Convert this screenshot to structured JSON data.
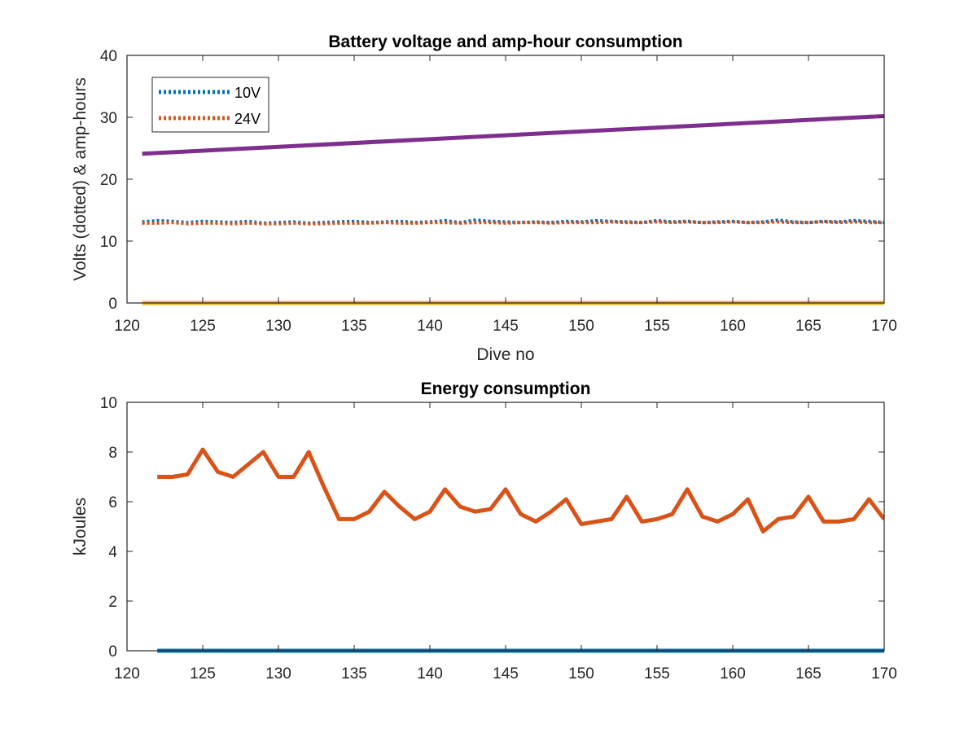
{
  "chart_data": [
    {
      "type": "line",
      "title": "Battery voltage and amp-hour consumption",
      "xlabel": "Dive no",
      "ylabel": "Volts (dotted) & amp-hours",
      "xlim": [
        120,
        170
      ],
      "ylim": [
        0,
        40
      ],
      "xticks": [
        120,
        125,
        130,
        135,
        140,
        145,
        150,
        155,
        160,
        165,
        170
      ],
      "yticks": [
        0,
        10,
        20,
        30,
        40
      ],
      "grid": false,
      "legend": {
        "placement": "top-left"
      },
      "series": [
        {
          "name": "10V",
          "color": "#0072BD",
          "style": "dotted",
          "x": [
            121,
            122,
            123,
            124,
            125,
            126,
            127,
            128,
            129,
            130,
            131,
            132,
            133,
            134,
            135,
            136,
            137,
            138,
            139,
            140,
            141,
            142,
            143,
            144,
            145,
            146,
            147,
            148,
            149,
            150,
            151,
            152,
            153,
            154,
            155,
            156,
            157,
            158,
            159,
            160,
            161,
            162,
            163,
            164,
            165,
            166,
            167,
            168,
            169,
            170
          ],
          "y": [
            13.1,
            13.3,
            13.2,
            13.0,
            13.2,
            13.1,
            13.0,
            13.2,
            12.9,
            13.0,
            13.1,
            12.9,
            13.0,
            13.1,
            13.2,
            13.0,
            13.1,
            13.2,
            13.0,
            13.1,
            13.3,
            13.0,
            13.4,
            13.2,
            13.1,
            13.0,
            13.1,
            13.0,
            13.2,
            13.1,
            13.3,
            13.2,
            13.1,
            13.0,
            13.3,
            13.1,
            13.2,
            13.0,
            13.1,
            13.2,
            13.0,
            13.1,
            13.4,
            13.1,
            13.0,
            13.2,
            13.1,
            13.3,
            13.2,
            13.0
          ]
        },
        {
          "name": "24V",
          "color": "#D95319",
          "style": "dotted",
          "x": [
            121,
            122,
            123,
            124,
            125,
            126,
            127,
            128,
            129,
            130,
            131,
            132,
            133,
            134,
            135,
            136,
            137,
            138,
            139,
            140,
            141,
            142,
            143,
            144,
            145,
            146,
            147,
            148,
            149,
            150,
            151,
            152,
            153,
            154,
            155,
            156,
            157,
            158,
            159,
            160,
            161,
            162,
            163,
            164,
            165,
            166,
            167,
            168,
            169,
            170
          ],
          "y": [
            12.9,
            12.9,
            13.0,
            12.8,
            12.9,
            12.9,
            12.8,
            12.9,
            12.8,
            12.8,
            12.9,
            12.8,
            12.8,
            12.9,
            12.9,
            12.9,
            13.0,
            12.9,
            12.9,
            13.0,
            13.0,
            12.9,
            13.0,
            13.0,
            12.9,
            13.0,
            13.0,
            12.9,
            13.0,
            13.0,
            13.0,
            13.1,
            13.0,
            13.0,
            13.1,
            13.0,
            13.1,
            13.0,
            13.0,
            13.1,
            13.0,
            13.0,
            13.1,
            13.0,
            13.0,
            13.1,
            13.0,
            13.1,
            13.0,
            13.0
          ]
        },
        {
          "color": "#EDB120",
          "style": "solid",
          "x": [
            121,
            170
          ],
          "y": [
            0,
            0
          ]
        },
        {
          "color": "#7E2F8E",
          "style": "solid",
          "x": [
            121,
            170
          ],
          "y": [
            24.1,
            30.2
          ]
        }
      ]
    },
    {
      "type": "line",
      "title": "Energy consumption",
      "xlabel": "",
      "ylabel": "kJoules",
      "xlim": [
        120,
        170
      ],
      "ylim": [
        0,
        10
      ],
      "xticks": [
        120,
        125,
        130,
        135,
        140,
        145,
        150,
        155,
        160,
        165,
        170
      ],
      "yticks": [
        0,
        2,
        4,
        6,
        8,
        10
      ],
      "grid": false,
      "series": [
        {
          "color": "#0072BD",
          "style": "solid",
          "x": [
            122,
            170
          ],
          "y": [
            0,
            0
          ]
        },
        {
          "color": "#D95319",
          "style": "solid",
          "x": [
            122,
            123,
            124,
            125,
            126,
            127,
            128,
            129,
            130,
            131,
            132,
            133,
            134,
            135,
            136,
            137,
            138,
            139,
            140,
            141,
            142,
            143,
            144,
            145,
            146,
            147,
            148,
            149,
            150,
            151,
            152,
            153,
            154,
            155,
            156,
            157,
            158,
            159,
            160,
            161,
            162,
            163,
            164,
            165,
            166,
            167,
            168,
            169,
            170
          ],
          "y": [
            7.0,
            7.0,
            7.1,
            8.1,
            7.2,
            7.0,
            7.5,
            8.0,
            7.0,
            7.0,
            8.0,
            6.6,
            5.3,
            5.3,
            5.6,
            6.4,
            5.8,
            5.3,
            5.6,
            6.5,
            5.8,
            5.6,
            5.7,
            6.5,
            5.5,
            5.2,
            5.6,
            6.1,
            5.1,
            5.2,
            5.3,
            6.2,
            5.2,
            5.3,
            5.5,
            6.5,
            5.4,
            5.2,
            5.5,
            6.1,
            4.8,
            5.3,
            5.4,
            6.2,
            5.2,
            5.2,
            5.3,
            6.1,
            5.3
          ]
        }
      ]
    }
  ]
}
